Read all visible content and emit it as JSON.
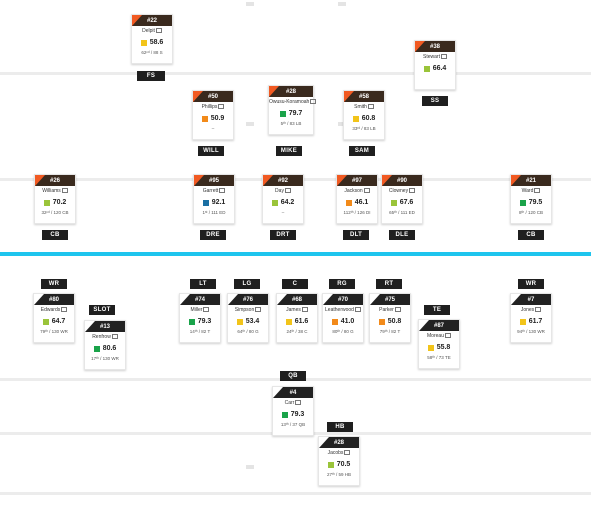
{
  "colors": {
    "line_of_scrimmage": "#1ec5ee",
    "card_header_defense": "#3a2a1e",
    "card_header_offense": "#222222",
    "grade_green": "#1aa34a",
    "grade_lightgreen": "#9ac43a",
    "grade_yellow": "#f2c41a",
    "grade_orange": "#f28a1a",
    "grade_blue": "#1a6fa3"
  },
  "defense": {
    "players": [
      {
        "id": "d-fs",
        "number": "#22",
        "name": "Delpit",
        "grade": "58.6",
        "grade_color": "#f2c41a",
        "rank": "62ⁿᵈ / 88 S",
        "position": "FS",
        "notes_icon": "message-icon"
      },
      {
        "id": "d-ss",
        "number": "#38",
        "name": "Stewart",
        "grade": "66.4",
        "grade_color": "#9ac43a",
        "rank": "",
        "position": "SS",
        "notes_icon": "message-icon"
      },
      {
        "id": "d-will",
        "number": "#50",
        "name": "Phillips",
        "grade": "50.9",
        "grade_color": "#f28a1a",
        "rank": "–",
        "position": "WILL",
        "notes_icon": "message-icon"
      },
      {
        "id": "d-mike",
        "number": "#28",
        "name": "Owusu-Koramoah",
        "grade": "79.7",
        "grade_color": "#1aa34a",
        "rank": "5ᵗʰ / 83 LB",
        "position": "MIKE",
        "notes_icon": "message-icon"
      },
      {
        "id": "d-sam",
        "number": "#58",
        "name": "Smith",
        "grade": "60.8",
        "grade_color": "#f2c41a",
        "rank": "33ʳᵈ / 83 LB",
        "position": "SAM",
        "notes_icon": "message-icon"
      },
      {
        "id": "d-cb1",
        "number": "#26",
        "name": "Williams",
        "grade": "70.2",
        "grade_color": "#9ac43a",
        "rank": "32ⁿᵈ / 120 CB",
        "position": "CB",
        "notes_icon": "message-icon"
      },
      {
        "id": "d-dre",
        "number": "#95",
        "name": "Garrett",
        "grade": "92.1",
        "grade_color": "#1a6fa3",
        "rank": "1ˢᵗ / 111 ED",
        "position": "DRE",
        "notes_icon": "message-icon"
      },
      {
        "id": "d-drt",
        "number": "#92",
        "name": "Day",
        "grade": "64.2",
        "grade_color": "#9ac43a",
        "rank": "–",
        "position": "DRT",
        "notes_icon": "message-icon"
      },
      {
        "id": "d-dlt",
        "number": "#97",
        "name": "Jackson",
        "grade": "46.1",
        "grade_color": "#f28a1a",
        "rank": "112ᵗʰ / 126 DI",
        "position": "DLT",
        "notes_icon": "message-icon"
      },
      {
        "id": "d-dle",
        "number": "#90",
        "name": "Clowney",
        "grade": "67.6",
        "grade_color": "#9ac43a",
        "rank": "65ᵗʰ / 111 ED",
        "position": "DLE",
        "notes_icon": "message-icon"
      },
      {
        "id": "d-cb2",
        "number": "#21",
        "name": "Ward",
        "grade": "79.5",
        "grade_color": "#1aa34a",
        "rank": "8ᵗʰ / 120 CB",
        "position": "CB",
        "notes_icon": "message-icon"
      }
    ]
  },
  "offense": {
    "players": [
      {
        "id": "o-wr1",
        "number": "#80",
        "name": "Edwards",
        "grade": "64.7",
        "grade_color": "#9ac43a",
        "rank": "79ᵗʰ / 130 WR",
        "position": "WR",
        "notes_icon": "message-icon"
      },
      {
        "id": "o-slot",
        "number": "#13",
        "name": "Renfrow",
        "grade": "80.6",
        "grade_color": "#1aa34a",
        "rank": "17ᵗʰ / 130 WR",
        "position": "SLOT",
        "notes_icon": "message-icon"
      },
      {
        "id": "o-lt",
        "number": "#74",
        "name": "Miller",
        "grade": "79.3",
        "grade_color": "#1aa34a",
        "rank": "14ᵗʰ / 82 T",
        "position": "LT",
        "notes_icon": "message-icon"
      },
      {
        "id": "o-lg",
        "number": "#76",
        "name": "Simpson",
        "grade": "53.4",
        "grade_color": "#f2c41a",
        "rank": "64ᵗʰ / 80 G",
        "position": "LG",
        "notes_icon": "message-icon"
      },
      {
        "id": "o-c",
        "number": "#68",
        "name": "James",
        "grade": "61.6",
        "grade_color": "#f2c41a",
        "rank": "24ᵗʰ / 38 C",
        "position": "C",
        "notes_icon": "message-icon"
      },
      {
        "id": "o-rg",
        "number": "#70",
        "name": "Leatherwood",
        "grade": "41.0",
        "grade_color": "#f28a1a",
        "rank": "80ᵗʰ / 80 G",
        "position": "RG",
        "notes_icon": "message-icon"
      },
      {
        "id": "o-rt",
        "number": "#75",
        "name": "Parker",
        "grade": "50.8",
        "grade_color": "#f28a1a",
        "rank": "79ᵗʰ / 82 T",
        "position": "RT",
        "notes_icon": "message-icon"
      },
      {
        "id": "o-te",
        "number": "#87",
        "name": "Moreau",
        "grade": "55.8",
        "grade_color": "#f2c41a",
        "rank": "58ᵗʰ / 73 TE",
        "position": "TE",
        "notes_icon": "message-icon"
      },
      {
        "id": "o-wr2",
        "number": "#7",
        "name": "Jones",
        "grade": "61.7",
        "grade_color": "#f2c41a",
        "rank": "94ᵗʰ / 130 WR",
        "position": "WR",
        "notes_icon": "message-icon"
      },
      {
        "id": "o-qb",
        "number": "#4",
        "name": "Carr",
        "grade": "79.3",
        "grade_color": "#1aa34a",
        "rank": "13ᵗʰ / 37 QB",
        "position": "QB",
        "notes_icon": "message-icon"
      },
      {
        "id": "o-hb",
        "number": "#28",
        "name": "Jacobs",
        "grade": "70.5",
        "grade_color": "#9ac43a",
        "rank": "27ᵗʰ / 59 HB",
        "position": "HB",
        "notes_icon": "message-icon"
      }
    ]
  }
}
